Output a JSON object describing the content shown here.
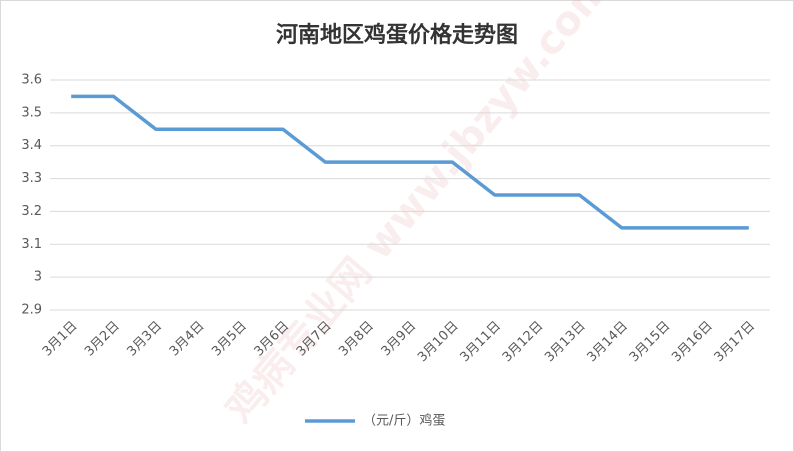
{
  "chart_data": {
    "type": "line",
    "title": "河南地区鸡蛋价格走势图",
    "watermark": "鸡病专业网 www.jbzyw.com",
    "categories": [
      "3月1日",
      "3月2日",
      "3月3日",
      "3月4日",
      "3月5日",
      "3月6日",
      "3月7日",
      "3月8日",
      "3月9日",
      "3月10日",
      "3月11日",
      "3月12日",
      "3月13日",
      "3月14日",
      "3月15日",
      "3月16日",
      "3月17日"
    ],
    "series": [
      {
        "name": "（元/斤）鸡蛋",
        "color": "#5b9bd5",
        "values": [
          3.55,
          3.55,
          3.45,
          3.45,
          3.45,
          3.45,
          3.35,
          3.35,
          3.35,
          3.35,
          3.25,
          3.25,
          3.25,
          3.15,
          3.15,
          3.15,
          3.15
        ]
      }
    ],
    "ylim": [
      2.9,
      3.6
    ],
    "yticks": [
      2.9,
      3,
      3.1,
      3.2,
      3.3,
      3.4,
      3.5,
      3.6
    ],
    "grid": true,
    "legend": "bottom"
  }
}
